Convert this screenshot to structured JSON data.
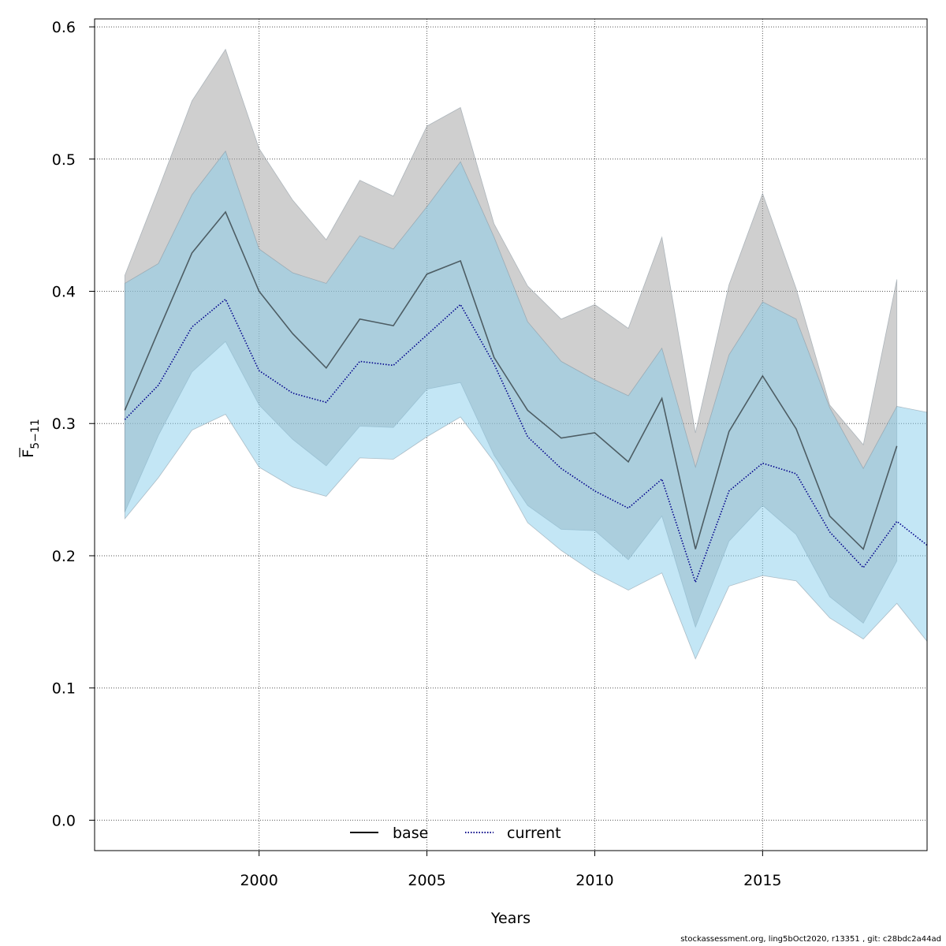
{
  "chart_data": {
    "type": "area",
    "xlabel": "Years",
    "ylabel": {
      "main": "F",
      "subscript": "5−11"
    },
    "xlim": [
      1995.1,
      2019.9
    ],
    "ylim": [
      -0.023,
      0.606
    ],
    "x_ticks": [
      2000,
      2005,
      2010,
      2015
    ],
    "y_ticks": [
      0.0,
      0.1,
      0.2,
      0.3,
      0.4,
      0.5,
      0.6
    ],
    "x_tick_labels": [
      "2000",
      "2005",
      "2010",
      "2015"
    ],
    "y_tick_labels": [
      "0.0",
      "0.1",
      "0.2",
      "0.3",
      "0.4",
      "0.5",
      "0.6"
    ],
    "grid": true,
    "legend_position": "bottom-center",
    "series": [
      {
        "name": "base",
        "line_style": "solid",
        "line_color": "#000000",
        "band_color": "#a0a0a0",
        "x": [
          1996,
          1997,
          1998,
          1999,
          2000,
          2001,
          2002,
          2003,
          2004,
          2005,
          2006,
          2007,
          2008,
          2009,
          2010,
          2011,
          2012,
          2013,
          2014,
          2015,
          2016,
          2017,
          2018,
          2019
        ],
        "values": [
          0.31,
          0.37,
          0.429,
          0.46,
          0.4,
          0.368,
          0.342,
          0.379,
          0.374,
          0.413,
          0.423,
          0.35,
          0.31,
          0.289,
          0.293,
          0.271,
          0.319,
          0.205,
          0.294,
          0.336,
          0.296,
          0.23,
          0.205,
          0.283
        ],
        "lower": [
          0.233,
          0.291,
          0.339,
          0.362,
          0.314,
          0.288,
          0.268,
          0.298,
          0.297,
          0.326,
          0.331,
          0.276,
          0.238,
          0.22,
          0.219,
          0.197,
          0.23,
          0.146,
          0.211,
          0.238,
          0.216,
          0.169,
          0.149,
          0.196
        ],
        "upper": [
          0.412,
          0.477,
          0.544,
          0.583,
          0.508,
          0.469,
          0.439,
          0.484,
          0.472,
          0.525,
          0.539,
          0.451,
          0.404,
          0.379,
          0.39,
          0.372,
          0.441,
          0.293,
          0.405,
          0.474,
          0.402,
          0.314,
          0.284,
          0.409
        ]
      },
      {
        "name": "current",
        "line_style": "dotted",
        "line_color": "#00008b",
        "band_color": "#87ceeb",
        "x": [
          1996,
          1997,
          1998,
          1999,
          2000,
          2001,
          2002,
          2003,
          2004,
          2005,
          2006,
          2007,
          2008,
          2009,
          2010,
          2011,
          2012,
          2013,
          2014,
          2015,
          2016,
          2017,
          2018,
          2019,
          2020
        ],
        "values": [
          0.303,
          0.329,
          0.373,
          0.394,
          0.34,
          0.323,
          0.316,
          0.347,
          0.344,
          0.367,
          0.39,
          0.345,
          0.29,
          0.266,
          0.249,
          0.236,
          0.258,
          0.18,
          0.249,
          0.27,
          0.262,
          0.218,
          0.191,
          0.226,
          0.206
        ],
        "lower": [
          0.228,
          0.259,
          0.295,
          0.307,
          0.267,
          0.252,
          0.245,
          0.274,
          0.273,
          0.29,
          0.305,
          0.271,
          0.225,
          0.204,
          0.187,
          0.174,
          0.187,
          0.122,
          0.177,
          0.185,
          0.181,
          0.153,
          0.137,
          0.164,
          0.132
        ],
        "upper": [
          0.406,
          0.421,
          0.473,
          0.506,
          0.432,
          0.414,
          0.406,
          0.442,
          0.432,
          0.464,
          0.498,
          0.441,
          0.377,
          0.347,
          0.333,
          0.321,
          0.357,
          0.267,
          0.352,
          0.392,
          0.379,
          0.312,
          0.266,
          0.313,
          0.308
        ]
      }
    ]
  },
  "footer": "stockassessment.org, ling5bOct2020, r13351 , git: c28bdc2a44ad"
}
